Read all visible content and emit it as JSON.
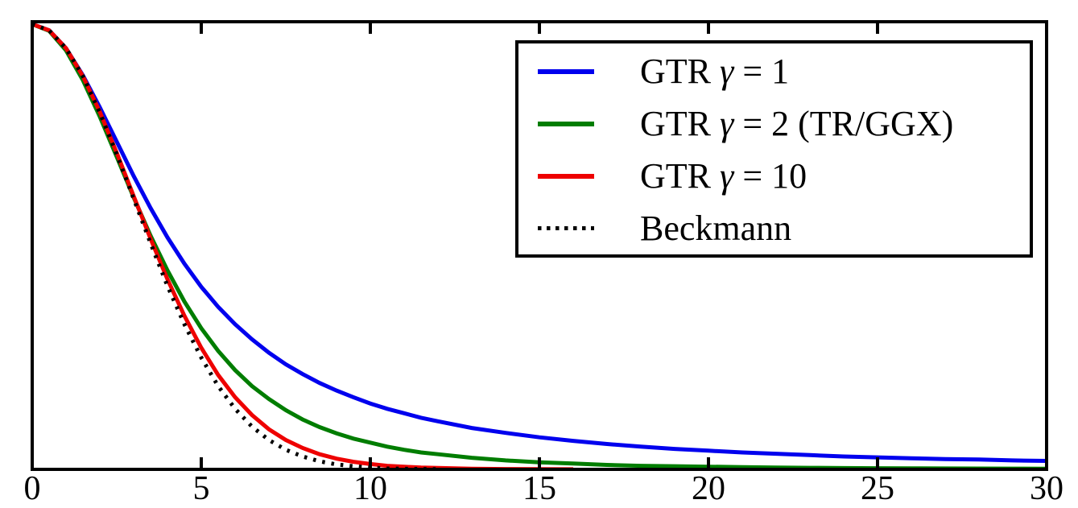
{
  "chart_data": {
    "type": "line",
    "title": "",
    "xlabel": "",
    "ylabel": "",
    "xlim": [
      0,
      30
    ],
    "ylim": [
      0,
      1
    ],
    "grid": false,
    "x_ticks": [
      0,
      5,
      10,
      15,
      20,
      25,
      30
    ],
    "legend": {
      "position": "upper right",
      "entries": [
        {
          "prefix": "GTR ",
          "gamma": "γ",
          "suffix": " = 1",
          "color": "#0000ee",
          "style": "solid"
        },
        {
          "prefix": "GTR ",
          "gamma": "γ",
          "suffix": " = 2 (TR/GGX)",
          "color": "#007d00",
          "style": "solid"
        },
        {
          "prefix": "GTR ",
          "gamma": "γ",
          "suffix": " = 10",
          "color": "#ee0000",
          "style": "solid"
        },
        {
          "prefix": "Beckmann",
          "gamma": "",
          "suffix": "",
          "color": "#000000",
          "style": "dotted"
        }
      ]
    },
    "series": [
      {
        "name": "GTR γ = 1",
        "color": "#0000ee",
        "style": "solid",
        "x": [
          0,
          0.5,
          1,
          1.5,
          2,
          2.5,
          3,
          3.5,
          4,
          4.5,
          5,
          5.5,
          6,
          6.5,
          7,
          7.5,
          8,
          8.5,
          9,
          9.5,
          10,
          10.5,
          11,
          11.5,
          12,
          13,
          14,
          15,
          16,
          17,
          18,
          19,
          20,
          21,
          22,
          23,
          24,
          25,
          26,
          27,
          28,
          29,
          30
        ],
        "y": [
          1,
          0.986,
          0.946,
          0.885,
          0.813,
          0.736,
          0.659,
          0.587,
          0.521,
          0.462,
          0.41,
          0.365,
          0.326,
          0.292,
          0.262,
          0.236,
          0.214,
          0.194,
          0.177,
          0.162,
          0.148,
          0.136,
          0.126,
          0.116,
          0.108,
          0.093,
          0.082,
          0.072,
          0.064,
          0.057,
          0.051,
          0.046,
          0.042,
          0.038,
          0.035,
          0.032,
          0.029,
          0.027,
          0.025,
          0.023,
          0.022,
          0.02,
          0.019
        ]
      },
      {
        "name": "GTR γ = 2 (TR/GGX)",
        "color": "#007d00",
        "style": "solid",
        "x": [
          0,
          0.5,
          1,
          1.5,
          2,
          2.5,
          3,
          3.5,
          4,
          4.5,
          5,
          5.5,
          6,
          6.5,
          7,
          7.5,
          8,
          8.5,
          9,
          9.5,
          10,
          10.5,
          11,
          11.5,
          12,
          13,
          14,
          15,
          16,
          17,
          18,
          19,
          20,
          21,
          22,
          23,
          24,
          25,
          26,
          27,
          28,
          29,
          30
        ],
        "y": [
          1,
          0.985,
          0.941,
          0.874,
          0.792,
          0.702,
          0.611,
          0.525,
          0.447,
          0.377,
          0.317,
          0.266,
          0.223,
          0.187,
          0.158,
          0.133,
          0.112,
          0.095,
          0.081,
          0.069,
          0.06,
          0.051,
          0.044,
          0.038,
          0.034,
          0.026,
          0.02,
          0.016,
          0.013,
          0.01,
          0.008,
          0.007,
          0.006,
          0.005,
          0.004,
          0.0034,
          0.0029,
          0.0026,
          0.0023,
          0.002,
          0.0018,
          0.0016,
          0.0014
        ]
      },
      {
        "name": "GTR γ = 10",
        "color": "#ee0000",
        "style": "solid",
        "x": [
          0,
          0.5,
          1,
          1.5,
          2,
          2.5,
          3,
          3.5,
          4,
          4.5,
          5,
          5.5,
          6,
          6.5,
          7,
          7.5,
          8,
          8.5,
          9,
          9.5,
          10,
          10.5,
          11,
          11.5,
          12,
          13,
          14,
          15,
          16
        ],
        "y": [
          1,
          0.986,
          0.946,
          0.883,
          0.803,
          0.711,
          0.614,
          0.518,
          0.427,
          0.345,
          0.273,
          0.212,
          0.162,
          0.122,
          0.09,
          0.066,
          0.048,
          0.034,
          0.024,
          0.017,
          0.012,
          0.008,
          0.006,
          0.004,
          0.003,
          0.0013,
          0.0007,
          0.0004,
          0.0002
        ]
      },
      {
        "name": "Beckmann",
        "color": "#000000",
        "style": "dotted",
        "x": [
          0,
          0.5,
          1,
          1.5,
          2,
          2.5,
          3,
          3.5,
          4,
          4.5,
          5,
          5.5,
          6,
          6.5,
          7,
          7.5,
          8,
          8.5,
          9,
          9.5,
          10,
          10.5,
          11,
          11.5,
          12
        ],
        "y": [
          1,
          0.986,
          0.946,
          0.883,
          0.801,
          0.708,
          0.608,
          0.508,
          0.412,
          0.326,
          0.251,
          0.187,
          0.136,
          0.096,
          0.066,
          0.044,
          0.029,
          0.018,
          0.011,
          0.007,
          0.004,
          0.002,
          0.0012,
          0.0007,
          0.0004
        ]
      }
    ]
  },
  "layout_colors": {
    "frame": "#000000",
    "background": "#ffffff"
  }
}
